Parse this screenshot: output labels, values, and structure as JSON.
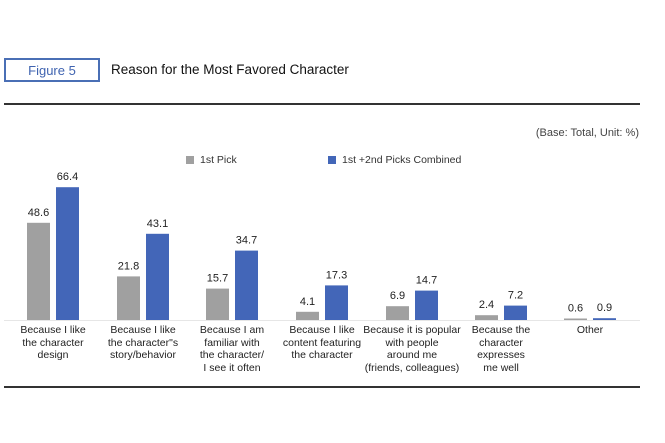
{
  "header": {
    "figure_label": "Figure 5",
    "title": "Reason for the Most Favored Character",
    "base_note": "(Base: Total, Unit: %)"
  },
  "chart_data": {
    "type": "bar",
    "title": "Reason for the Most Favored Character",
    "categories": [
      "Because I like\nthe character\ndesign",
      "Because I like\nthe character\"s\nstory/behavior",
      "Because I am\nfamiliar with\nthe character/\nI see it often",
      "Because I like\ncontent featuring\nthe character",
      "Because it is popular\nwith people\naround me\n(friends, colleagues)",
      "Because the\ncharacter\nexpresses\nme well",
      "Other"
    ],
    "series": [
      {
        "name": "1st Pick",
        "color": "#a0a0a0",
        "values": [
          48.6,
          21.8,
          15.7,
          4.1,
          6.9,
          2.4,
          0.6
        ]
      },
      {
        "name": "1st +2nd Picks Combined",
        "color": "#4366b8",
        "values": [
          66.4,
          43.1,
          34.7,
          17.3,
          14.7,
          7.2,
          0.9
        ]
      }
    ],
    "ylim": [
      0,
      70
    ],
    "grid": false,
    "legend": "top"
  }
}
